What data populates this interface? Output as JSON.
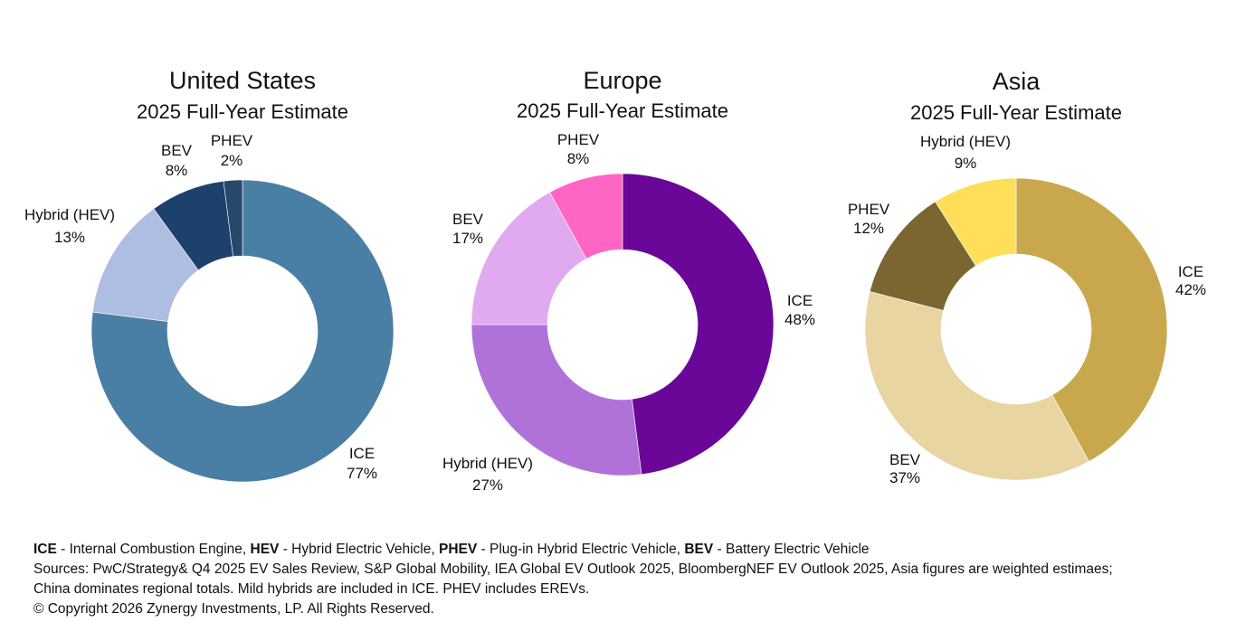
{
  "chart_data": [
    {
      "type": "pie",
      "title": "United States",
      "subtitle": "2025 Full-Year Estimate",
      "slices": [
        {
          "label": "ICE",
          "value": 77,
          "value_text": "77%",
          "color": "#4A7FA5"
        },
        {
          "label": "Hybrid (HEV)",
          "value": 13,
          "value_text": "13%",
          "color": "#AEBDE2"
        },
        {
          "label": "BEV",
          "value": 8,
          "value_text": "8%",
          "color": "#1C416D"
        },
        {
          "label": "PHEV",
          "value": 2,
          "value_text": "2%",
          "color": "#27476B"
        }
      ]
    },
    {
      "type": "pie",
      "title": "Europe",
      "subtitle": "2025 Full-Year Estimate",
      "slices": [
        {
          "label": "ICE",
          "value": 48,
          "value_text": "48%",
          "color": "#6A0799"
        },
        {
          "label": "Hybrid (HEV)",
          "value": 27,
          "value_text": "27%",
          "color": "#B072D8"
        },
        {
          "label": "BEV",
          "value": 17,
          "value_text": "17%",
          "color": "#E0A9F0"
        },
        {
          "label": "PHEV",
          "value": 8,
          "value_text": "8%",
          "color": "#FF66C4"
        }
      ]
    },
    {
      "type": "pie",
      "title": "Asia",
      "subtitle": "2025 Full-Year Estimate",
      "slices": [
        {
          "label": "ICE",
          "value": 42,
          "value_text": "42%",
          "color": "#C9A84D"
        },
        {
          "label": "BEV",
          "value": 37,
          "value_text": "37%",
          "color": "#E8D5A2"
        },
        {
          "label": "PHEV",
          "value": 12,
          "value_text": "12%",
          "color": "#7B6530"
        },
        {
          "label": "Hybrid (HEV)",
          "value": 9,
          "value_text": "9%",
          "color": "#FFDE59"
        }
      ]
    }
  ],
  "footer": {
    "legend": [
      {
        "abbr": "ICE",
        "text": " - Internal Combustion Engine, "
      },
      {
        "abbr": "HEV",
        "text": " - Hybrid Electric Vehicle, "
      },
      {
        "abbr": "PHEV",
        "text": " - Plug-in Hybrid Electric Vehicle, "
      },
      {
        "abbr": "BEV",
        "text": " - Battery Electric Vehicle"
      }
    ],
    "sources_line1": "Sources: PwC/Strategy& Q4 2025 EV Sales Review, S&P Global Mobility, IEA Global EV Outlook 2025, BloombergNEF EV Outlook 2025, Asia figures are weighted estimaes;",
    "sources_line2": "China dominates regional totals. Mild hybrids are included in ICE. PHEV includes EREVs.",
    "copyright": "© Copyright 2026 Zynergy Investments, LP. All Rights Reserved."
  }
}
